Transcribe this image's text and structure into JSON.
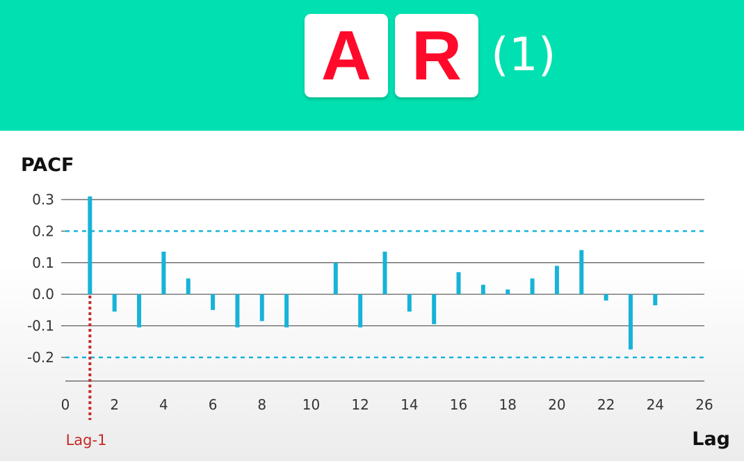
{
  "header": {
    "letters": [
      "A",
      "R"
    ],
    "order": "(1)",
    "background_color": "#00e0b0",
    "letter_color": "#ff0a2a"
  },
  "chart_data": {
    "type": "bar",
    "ylabel": "PACF",
    "xlabel": "Lag",
    "x": [
      1,
      2,
      3,
      4,
      5,
      6,
      7,
      8,
      9,
      11,
      12,
      13,
      14,
      15,
      16,
      17,
      18,
      19,
      20,
      21,
      22,
      23,
      24
    ],
    "values": [
      0.31,
      -0.055,
      -0.105,
      0.135,
      0.05,
      -0.05,
      -0.105,
      -0.085,
      -0.105,
      0.1,
      -0.105,
      0.135,
      -0.055,
      -0.095,
      0.07,
      0.03,
      0.015,
      0.05,
      0.09,
      0.14,
      -0.02,
      -0.175,
      -0.035
    ],
    "xlim": [
      0,
      26
    ],
    "ylim": [
      -0.275,
      0.3
    ],
    "x_ticks": [
      0,
      2,
      4,
      6,
      8,
      10,
      12,
      14,
      16,
      18,
      20,
      22,
      24,
      26
    ],
    "y_ticks": [
      0.3,
      0.2,
      0.1,
      0.0,
      -0.1,
      -0.2
    ],
    "y_tick_labels": [
      "0.3",
      "0.2",
      "0.1",
      "0.0",
      "-0.1",
      "-0.2"
    ],
    "confidence_band": [
      0.2,
      -0.2
    ],
    "grid": true,
    "annotation": {
      "label": "Lag-1",
      "x": 1
    },
    "colors": {
      "bars": "#17b3d8",
      "band": "#17b3d8",
      "annotation": "#c62828",
      "grid": "#555555"
    }
  }
}
